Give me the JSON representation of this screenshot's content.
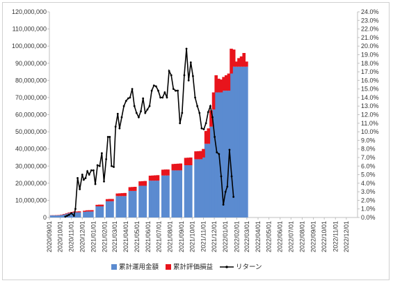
{
  "chart_data": {
    "type": "bar+line",
    "dates": [
      "2020/09/01",
      "2020/10/01",
      "2020/11/01",
      "2020/12/01",
      "2021/01/01",
      "2021/02/01",
      "2021/03/01",
      "2021/04/01",
      "2021/05/01",
      "2021/06/01",
      "2021/07/01",
      "2021/08/01",
      "2021/09/01",
      "2021/10/01",
      "2021/11/01",
      "2021/12/01",
      "2022/01/01",
      "2022/02/01",
      "2022/03/01",
      "2022/04/01",
      "2022/05/01",
      "2022/06/01",
      "2022/07/01",
      "2022/08/01",
      "2022/09/01",
      "2022/10/01",
      "2022/11/01",
      "2022/12/01"
    ],
    "x_tick_labels": [
      "2020/09/01",
      "2020/10/01",
      "2020/11/01",
      "2020/12/01",
      "2021/01/01",
      "2021/02/01",
      "2021/03/01",
      "2021/04/01",
      "2021/05/01",
      "2021/06/01",
      "2021/07/01",
      "2021/08/01",
      "2021/09/01",
      "2021/10/01",
      "2021/11/01",
      "2021/12/01",
      "2022/01/01",
      "2022/02/01",
      "2022/03/01",
      "2022/04/01",
      "2022/05/01",
      "2022/06/01",
      "2022/07/01",
      "2022/08/01",
      "2022/09/01",
      "2022/10/01",
      "2022/11/01",
      "2022/12/01"
    ],
    "y_left": {
      "min": 0,
      "max": 120000000,
      "step": 10000000,
      "tick_labels": [
        "0",
        "10,000,000",
        "20,000,000",
        "30,000,000",
        "40,000,000",
        "50,000,000",
        "60,000,000",
        "70,000,000",
        "80,000,000",
        "90,000,000",
        "100,000,000",
        "110,000,000",
        "120,000,000"
      ]
    },
    "y_right": {
      "min": 0,
      "max": 24,
      "step": 1,
      "tick_labels": [
        "0.0%",
        "1.0%",
        "2.0%",
        "3.0%",
        "4.0%",
        "5.0%",
        "6.0%",
        "7.0%",
        "8.0%",
        "9.0%",
        "10.0%",
        "11.0%",
        "12.0%",
        "13.0%",
        "14.0%",
        "15.0%",
        "16.0%",
        "17.0%",
        "18.0%",
        "19.0%",
        "20.0%",
        "21.0%",
        "22.0%",
        "23.0%",
        "24.0%"
      ]
    },
    "bars": [
      {
        "date": "2020/09/07",
        "invested": 1200000,
        "profit": 100000
      },
      {
        "date": "2020/09/14",
        "invested": 1200000,
        "profit": 100000
      },
      {
        "date": "2020/09/21",
        "invested": 1200000,
        "profit": 150000
      },
      {
        "date": "2020/09/28",
        "invested": 1300000,
        "profit": 150000
      },
      {
        "date": "2020/10/05",
        "invested": 1500000,
        "profit": 200000
      },
      {
        "date": "2020/10/12",
        "invested": 1800000,
        "profit": 250000
      },
      {
        "date": "2020/10/19",
        "invested": 2200000,
        "profit": 300000
      },
      {
        "date": "2020/10/26",
        "invested": 2600000,
        "profit": 350000
      },
      {
        "date": "2020/11/02",
        "invested": 2800000,
        "profit": 400000
      },
      {
        "date": "2020/11/09",
        "invested": 3000000,
        "profit": 500000
      },
      {
        "date": "2020/11/16",
        "invested": 3000000,
        "profit": 500000
      },
      {
        "date": "2020/11/23",
        "invested": 3000000,
        "profit": 600000
      },
      {
        "date": "2020/12/07",
        "invested": 3300000,
        "profit": 650000
      },
      {
        "date": "2020/12/14",
        "invested": 3500000,
        "profit": 700000
      },
      {
        "date": "2020/12/21",
        "invested": 3500000,
        "profit": 750000
      },
      {
        "date": "2020/12/28",
        "invested": 3500000,
        "profit": 800000
      },
      {
        "date": "2021/01/11",
        "invested": 6500000,
        "profit": 900000
      },
      {
        "date": "2021/01/18",
        "invested": 6500000,
        "profit": 1000000
      },
      {
        "date": "2021/01/25",
        "invested": 6500000,
        "profit": 1000000
      },
      {
        "date": "2021/02/08",
        "invested": 9500000,
        "profit": 1200000
      },
      {
        "date": "2021/02/15",
        "invested": 9500000,
        "profit": 1300000
      },
      {
        "date": "2021/02/22",
        "invested": 9500000,
        "profit": 1300000
      },
      {
        "date": "2021/03/08",
        "invested": 12500000,
        "profit": 1500000
      },
      {
        "date": "2021/03/15",
        "invested": 12500000,
        "profit": 1600000
      },
      {
        "date": "2021/03/22",
        "invested": 12500000,
        "profit": 1700000
      },
      {
        "date": "2021/03/29",
        "invested": 12500000,
        "profit": 1800000
      },
      {
        "date": "2021/04/12",
        "invested": 15500000,
        "profit": 2200000
      },
      {
        "date": "2021/04/19",
        "invested": 15500000,
        "profit": 2300000
      },
      {
        "date": "2021/04/26",
        "invested": 15500000,
        "profit": 2400000
      },
      {
        "date": "2021/05/10",
        "invested": 18500000,
        "profit": 2600000
      },
      {
        "date": "2021/05/17",
        "invested": 18500000,
        "profit": 2700000
      },
      {
        "date": "2021/05/24",
        "invested": 18500000,
        "profit": 2800000
      },
      {
        "date": "2021/06/07",
        "invested": 21500000,
        "profit": 2900000
      },
      {
        "date": "2021/06/14",
        "invested": 21500000,
        "profit": 3000000
      },
      {
        "date": "2021/06/21",
        "invested": 21500000,
        "profit": 3100000
      },
      {
        "date": "2021/06/28",
        "invested": 21500000,
        "profit": 3200000
      },
      {
        "date": "2021/07/12",
        "invested": 24500000,
        "profit": 3400000
      },
      {
        "date": "2021/07/19",
        "invested": 24500000,
        "profit": 3500000
      },
      {
        "date": "2021/07/26",
        "invested": 24500000,
        "profit": 3500000
      },
      {
        "date": "2021/08/09",
        "invested": 27500000,
        "profit": 3700000
      },
      {
        "date": "2021/08/16",
        "invested": 27500000,
        "profit": 3800000
      },
      {
        "date": "2021/08/23",
        "invested": 27500000,
        "profit": 3900000
      },
      {
        "date": "2021/08/30",
        "invested": 27500000,
        "profit": 4000000
      },
      {
        "date": "2021/09/13",
        "invested": 30500000,
        "profit": 4300000
      },
      {
        "date": "2021/09/20",
        "invested": 30500000,
        "profit": 4400000
      },
      {
        "date": "2021/09/27",
        "invested": 30500000,
        "profit": 4500000
      },
      {
        "date": "2021/10/11",
        "invested": 34000000,
        "profit": 4600000
      },
      {
        "date": "2021/10/18",
        "invested": 34000000,
        "profit": 4700000
      },
      {
        "date": "2021/10/25",
        "invested": 34000000,
        "profit": 4800000
      },
      {
        "date": "2021/11/01",
        "invested": 35000000,
        "profit": 5000000
      },
      {
        "date": "2021/11/08",
        "invested": 43000000,
        "profit": 7500000
      },
      {
        "date": "2021/11/15",
        "invested": 43000000,
        "profit": 9000000
      },
      {
        "date": "2021/11/22",
        "invested": 53000000,
        "profit": 9500000
      },
      {
        "date": "2021/11/29",
        "invested": 63000000,
        "profit": 10000000
      },
      {
        "date": "2021/12/06",
        "invested": 73000000,
        "profit": 10000000
      },
      {
        "date": "2021/12/13",
        "invested": 73000000,
        "profit": 8000000
      },
      {
        "date": "2021/12/20",
        "invested": 73000000,
        "profit": 7500000
      },
      {
        "date": "2021/12/27",
        "invested": 74000000,
        "profit": 8000000
      },
      {
        "date": "2022/01/03",
        "invested": 74000000,
        "profit": 9000000
      },
      {
        "date": "2022/01/10",
        "invested": 74000000,
        "profit": 10000000
      },
      {
        "date": "2022/01/17",
        "invested": 84000000,
        "profit": 14500000
      },
      {
        "date": "2022/01/24",
        "invested": 88000000,
        "profit": 10000000
      },
      {
        "date": "2022/01/31",
        "invested": 88000000,
        "profit": 3000000
      },
      {
        "date": "2022/02/07",
        "invested": 88000000,
        "profit": 5000000
      },
      {
        "date": "2022/02/14",
        "invested": 88000000,
        "profit": 6000000
      },
      {
        "date": "2022/02/21",
        "invested": 88000000,
        "profit": 8000000
      },
      {
        "date": "2022/02/28",
        "invested": 88000000,
        "profit": 3000000
      }
    ],
    "series": [
      {
        "name": "累計運用金額",
        "color": "#5b8bd0",
        "kind": "bar"
      },
      {
        "name": "累計評価損益",
        "color": "#e8141c",
        "kind": "bar"
      },
      {
        "name": "リターン",
        "color": "#000000",
        "kind": "line",
        "axis": "right"
      }
    ],
    "return_line": [
      {
        "date": "2020/10/15",
        "value": 0.1
      },
      {
        "date": "2020/10/20",
        "value": 0.2
      },
      {
        "date": "2020/10/25",
        "value": 0.3
      },
      {
        "date": "2020/11/01",
        "value": 0.5
      },
      {
        "date": "2020/11/08",
        "value": 0.2
      },
      {
        "date": "2020/11/12",
        "value": 1.0
      },
      {
        "date": "2020/11/18",
        "value": 4.6
      },
      {
        "date": "2020/11/24",
        "value": 3.3
      },
      {
        "date": "2020/12/01",
        "value": 5.0
      },
      {
        "date": "2020/12/05",
        "value": 4.4
      },
      {
        "date": "2020/12/10",
        "value": 4.6
      },
      {
        "date": "2020/12/15",
        "value": 5.4
      },
      {
        "date": "2020/12/20",
        "value": 5.0
      },
      {
        "date": "2020/12/26",
        "value": 5.5
      },
      {
        "date": "2021/01/01",
        "value": 5.5
      },
      {
        "date": "2021/01/06",
        "value": 3.9
      },
      {
        "date": "2021/01/12",
        "value": 6.1
      },
      {
        "date": "2021/01/18",
        "value": 6.0
      },
      {
        "date": "2021/01/24",
        "value": 7.5
      },
      {
        "date": "2021/01/30",
        "value": 4.2
      },
      {
        "date": "2021/02/05",
        "value": 6.8
      },
      {
        "date": "2021/02/10",
        "value": 9.4
      },
      {
        "date": "2021/02/15",
        "value": 9.4
      },
      {
        "date": "2021/02/20",
        "value": 6.0
      },
      {
        "date": "2021/02/26",
        "value": 5.9
      },
      {
        "date": "2021/03/03",
        "value": 10.6
      },
      {
        "date": "2021/03/09",
        "value": 12.1
      },
      {
        "date": "2021/03/14",
        "value": 10.4
      },
      {
        "date": "2021/03/20",
        "value": 11.7
      },
      {
        "date": "2021/03/26",
        "value": 13.0
      },
      {
        "date": "2021/04/01",
        "value": 13.6
      },
      {
        "date": "2021/04/07",
        "value": 13.9
      },
      {
        "date": "2021/04/12",
        "value": 14.0
      },
      {
        "date": "2021/04/18",
        "value": 15.0
      },
      {
        "date": "2021/04/24",
        "value": 13.0
      },
      {
        "date": "2021/04/30",
        "value": 12.2
      },
      {
        "date": "2021/05/06",
        "value": 11.7
      },
      {
        "date": "2021/05/12",
        "value": 12.4
      },
      {
        "date": "2021/05/18",
        "value": 13.9
      },
      {
        "date": "2021/05/24",
        "value": 12.2
      },
      {
        "date": "2021/05/30",
        "value": 12.6
      },
      {
        "date": "2021/06/05",
        "value": 13.0
      },
      {
        "date": "2021/06/11",
        "value": 14.8
      },
      {
        "date": "2021/06/17",
        "value": 15.4
      },
      {
        "date": "2021/06/23",
        "value": 15.3
      },
      {
        "date": "2021/06/29",
        "value": 14.8
      },
      {
        "date": "2021/07/05",
        "value": 14.0
      },
      {
        "date": "2021/07/11",
        "value": 14.0
      },
      {
        "date": "2021/07/17",
        "value": 14.6
      },
      {
        "date": "2021/07/23",
        "value": 14.0
      },
      {
        "date": "2021/07/29",
        "value": 17.1
      },
      {
        "date": "2021/08/04",
        "value": 16.6
      },
      {
        "date": "2021/08/10",
        "value": 15.0
      },
      {
        "date": "2021/08/16",
        "value": 14.8
      },
      {
        "date": "2021/08/22",
        "value": 14.8
      },
      {
        "date": "2021/08/28",
        "value": 11.0
      },
      {
        "date": "2021/09/03",
        "value": 12.2
      },
      {
        "date": "2021/09/09",
        "value": 16.6
      },
      {
        "date": "2021/09/15",
        "value": 19.7
      },
      {
        "date": "2021/09/21",
        "value": 16.0
      },
      {
        "date": "2021/09/27",
        "value": 18.1
      },
      {
        "date": "2021/10/03",
        "value": 16.5
      },
      {
        "date": "2021/10/09",
        "value": 14.0
      },
      {
        "date": "2021/10/15",
        "value": 13.0
      },
      {
        "date": "2021/10/21",
        "value": 12.2
      },
      {
        "date": "2021/10/27",
        "value": 10.4
      },
      {
        "date": "2021/11/02",
        "value": 10.3
      },
      {
        "date": "2021/11/08",
        "value": 11.0
      },
      {
        "date": "2021/11/14",
        "value": 12.3
      },
      {
        "date": "2021/11/20",
        "value": 13.0
      },
      {
        "date": "2021/11/26",
        "value": 11.7
      },
      {
        "date": "2021/12/02",
        "value": 9.4
      },
      {
        "date": "2021/12/08",
        "value": 7.6
      },
      {
        "date": "2021/12/14",
        "value": 7.4
      },
      {
        "date": "2021/12/20",
        "value": 4.8
      },
      {
        "date": "2021/12/26",
        "value": 1.5
      },
      {
        "date": "2022/01/01",
        "value": 3.0
      },
      {
        "date": "2022/01/06",
        "value": 3.6
      },
      {
        "date": "2022/01/12",
        "value": 7.9
      },
      {
        "date": "2022/01/18",
        "value": 4.8
      },
      {
        "date": "2022/01/23",
        "value": 2.4
      }
    ],
    "grid": false,
    "legend_position": "bottom"
  }
}
